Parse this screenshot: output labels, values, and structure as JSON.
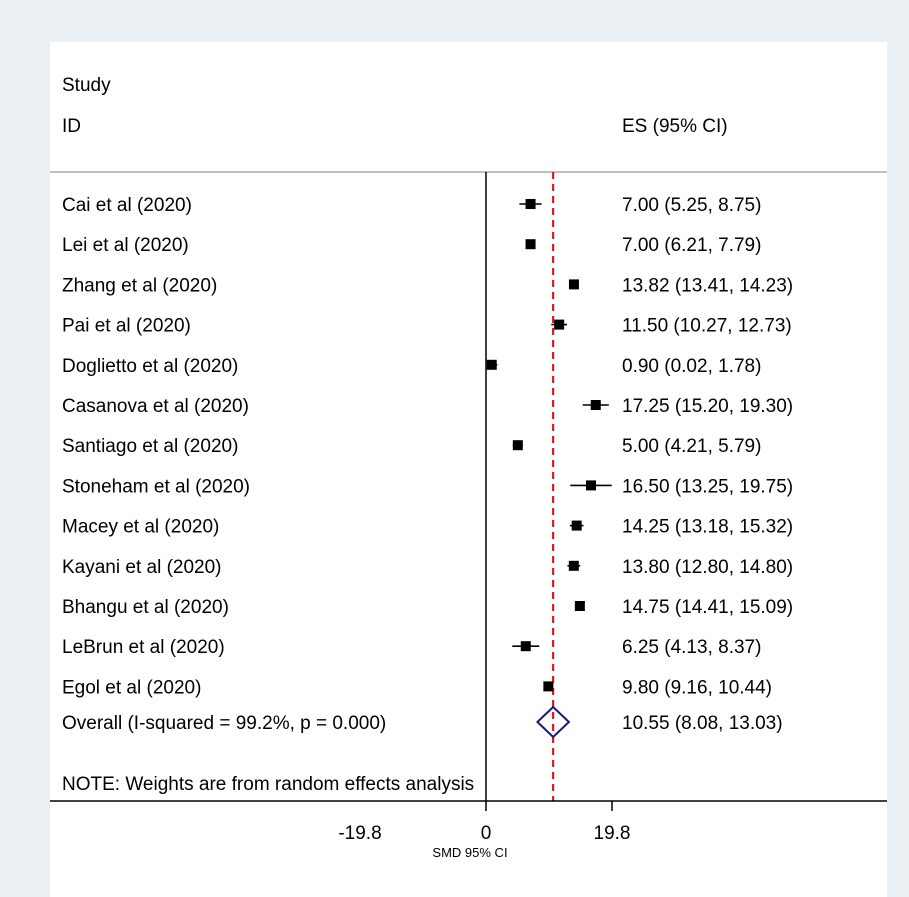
{
  "chart_data": {
    "type": "forest",
    "header": {
      "study_line1": "Study",
      "study_line2": "ID",
      "es_label": "ES (95% CI)"
    },
    "studies": [
      {
        "name": "Cai et al (2020)",
        "es": 7.0,
        "lower": 5.25,
        "upper": 8.75,
        "label": "7.00 (5.25, 8.75)"
      },
      {
        "name": "Lei et al (2020)",
        "es": 7.0,
        "lower": 6.21,
        "upper": 7.79,
        "label": "7.00 (6.21, 7.79)"
      },
      {
        "name": "Zhang et al (2020)",
        "es": 13.82,
        "lower": 13.41,
        "upper": 14.23,
        "label": "13.82 (13.41, 14.23)"
      },
      {
        "name": "Pai et al (2020)",
        "es": 11.5,
        "lower": 10.27,
        "upper": 12.73,
        "label": "11.50 (10.27, 12.73)"
      },
      {
        "name": "Doglietto et al (2020)",
        "es": 0.9,
        "lower": 0.02,
        "upper": 1.78,
        "label": "0.90 (0.02, 1.78)"
      },
      {
        "name": "Casanova et al (2020)",
        "es": 17.25,
        "lower": 15.2,
        "upper": 19.3,
        "label": "17.25 (15.20, 19.30)"
      },
      {
        "name": "Santiago et al (2020)",
        "es": 5.0,
        "lower": 4.21,
        "upper": 5.79,
        "label": "5.00 (4.21, 5.79)"
      },
      {
        "name": "Stoneham et al (2020)",
        "es": 16.5,
        "lower": 13.25,
        "upper": 19.75,
        "label": "16.50 (13.25, 19.75)"
      },
      {
        "name": "Macey et al (2020)",
        "es": 14.25,
        "lower": 13.18,
        "upper": 15.32,
        "label": "14.25 (13.18, 15.32)"
      },
      {
        "name": "Kayani et al (2020)",
        "es": 13.8,
        "lower": 12.8,
        "upper": 14.8,
        "label": "13.80 (12.80, 14.80)"
      },
      {
        "name": "Bhangu et al (2020)",
        "es": 14.75,
        "lower": 14.41,
        "upper": 15.09,
        "label": "14.75 (14.41, 15.09)"
      },
      {
        "name": "LeBrun et al (2020)",
        "es": 6.25,
        "lower": 4.13,
        "upper": 8.37,
        "label": "6.25 (4.13, 8.37)"
      },
      {
        "name": "Egol et al (2020)",
        "es": 9.8,
        "lower": 9.16,
        "upper": 10.44,
        "label": "9.80 (9.16, 10.44)"
      }
    ],
    "overall": {
      "name": "Overall  (I-squared = 99.2%, p = 0.000)",
      "es": 10.55,
      "lower": 8.08,
      "upper": 13.03,
      "label": "10.55 (8.08, 13.03)"
    },
    "note": "NOTE: Weights are from random effects analysis",
    "xaxis": {
      "ticks": [
        -19.8,
        0,
        19.8
      ],
      "tick_labels": [
        "-19.8",
        "0",
        "19.8"
      ],
      "label": "SMD 95% CI"
    },
    "xlim": [
      -19.8,
      19.8
    ],
    "colors": {
      "background": "#eaf0f3",
      "panel": "#ffffff",
      "marker": "#000000",
      "overall_line": "#e8141a",
      "diamond": "#1a1a7a"
    }
  }
}
